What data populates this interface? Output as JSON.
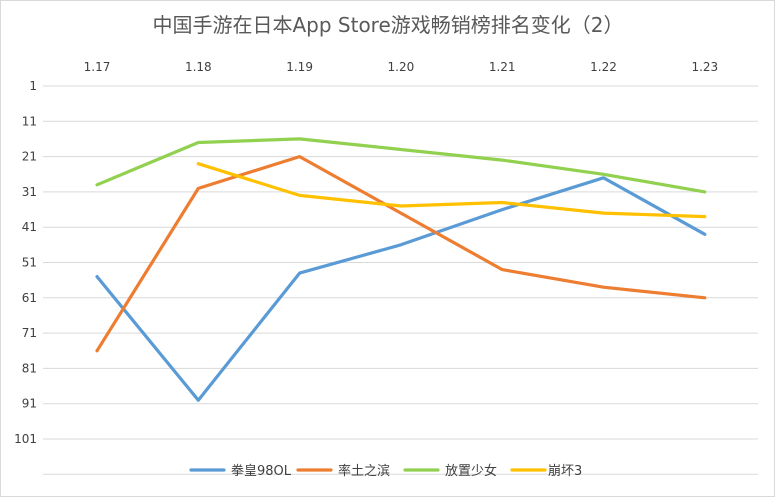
{
  "chart_data": {
    "type": "line",
    "title": "中国手游在日本App Store游戏畅销榜排名变化（2）",
    "xlabel": "",
    "ylabel": "",
    "categories": [
      "1.17",
      "1.18",
      "1.19",
      "1.20",
      "1.21",
      "1.22",
      "1.23"
    ],
    "x_axis_position": "top",
    "y_axis_reversed": true,
    "ylim": [
      1,
      111
    ],
    "yticks": [
      1,
      11,
      21,
      31,
      41,
      51,
      61,
      71,
      81,
      91,
      101
    ],
    "grid": true,
    "legend_position": "bottom",
    "series": [
      {
        "name": "拳皇98OL",
        "color": "#5b9bd5",
        "values": [
          55,
          90,
          54,
          46,
          36,
          27,
          43
        ]
      },
      {
        "name": "率土之滨",
        "color": "#ed7d31",
        "values": [
          76,
          30,
          21,
          37,
          53,
          58,
          61
        ]
      },
      {
        "name": "放置少女",
        "color": "#92d050",
        "values": [
          29,
          17,
          16,
          19,
          22,
          26,
          31
        ]
      },
      {
        "name": "崩坏3",
        "color": "#ffc000",
        "values": [
          null,
          23,
          32,
          35,
          34,
          37,
          38
        ]
      }
    ]
  }
}
